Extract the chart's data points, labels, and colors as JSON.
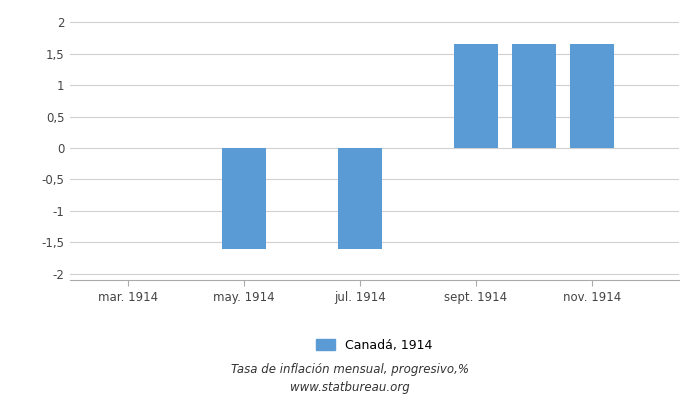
{
  "xtick_labels": [
    "mar. 1914",
    "may. 1914",
    "jul. 1914",
    "sept. 1914",
    "nov. 1914"
  ],
  "xtick_positions": [
    1,
    3,
    5,
    7,
    9
  ],
  "bar_months": [
    3,
    5,
    7,
    8,
    9
  ],
  "values": [
    -1.613,
    -1.613,
    1.653,
    1.653,
    1.653
  ],
  "bar_color": "#5b9bd5",
  "ylim": [
    -2.1,
    2.1
  ],
  "yticks": [
    -2,
    -1.5,
    -1,
    -0.5,
    0,
    0.5,
    1,
    1.5,
    2
  ],
  "ytick_labels": [
    "-2",
    "-1,5",
    "-1",
    "-0,5",
    "0",
    "0,5",
    "1",
    "1,5",
    "2"
  ],
  "legend_label": "Canadá, 1914",
  "footer_line1": "Tasa de inflación mensual, progresivo,%",
  "footer_line2": "www.statbureau.org",
  "background_color": "#ffffff",
  "grid_color": "#d0d0d0",
  "bar_width": 0.75,
  "xlim": [
    0,
    10.5
  ]
}
